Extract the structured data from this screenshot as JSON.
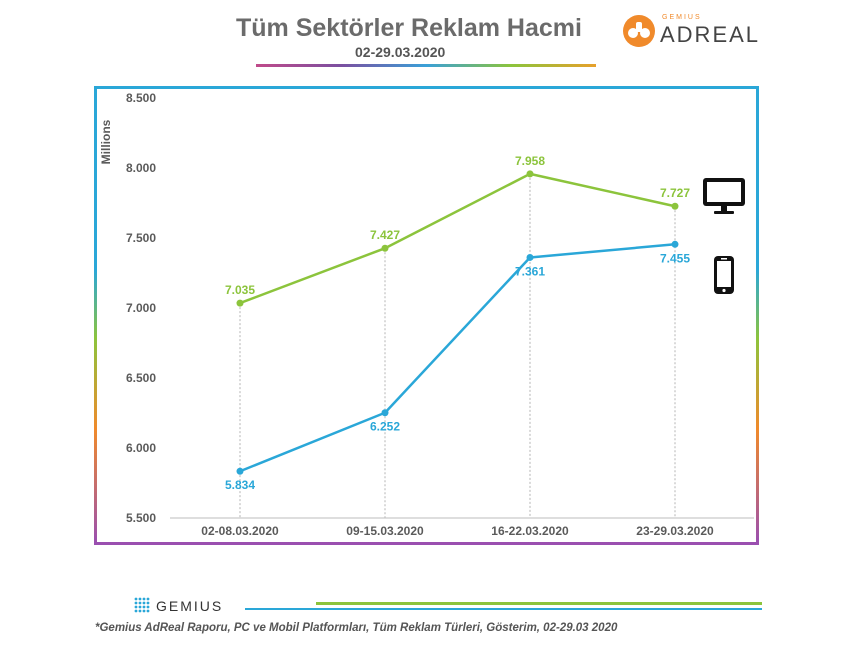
{
  "header": {
    "title": "Tüm Sektörler Reklam Hacmi",
    "subtitle": "02-29.03.2020",
    "logo": {
      "brand": "GEMIUS",
      "name": "ADREAL"
    }
  },
  "footer": {
    "logo": "GEMIUS",
    "note": "*Gemius AdReal Raporu, PC ve Mobil Platformları, Tüm Reklam Türleri, Gösterim, 02-29.03 2020"
  },
  "colors": {
    "pc": "#8cc43c",
    "mobile": "#2aa7d8",
    "frame": "#2aa7d8"
  },
  "icons": {
    "pc": "monitor-icon",
    "mobile": "smartphone-icon"
  },
  "chart_data": {
    "type": "line",
    "title": "Tüm Sektörler Reklam Hacmi",
    "subtitle": "02-29.03.2020",
    "xlabel": "",
    "ylabel": "Millions",
    "categories": [
      "02-08.03.2020",
      "09-15.03.2020",
      "16-22.03.2020",
      "23-29.03.2020"
    ],
    "yticks": [
      "5.500",
      "6.000",
      "6.500",
      "7.000",
      "7.500",
      "8.000",
      "8.500"
    ],
    "ylim": [
      5.5,
      8.5
    ],
    "grid": false,
    "series": [
      {
        "key": "pc",
        "values": [
          7.035,
          7.427,
          7.958,
          7.727
        ],
        "labels": [
          "7.035",
          "7.427",
          "7.958",
          "7.727"
        ]
      },
      {
        "key": "mobile",
        "values": [
          5.834,
          6.252,
          7.361,
          7.455
        ],
        "labels": [
          "5.834",
          "6.252",
          "7.361",
          "7.455"
        ]
      }
    ]
  }
}
